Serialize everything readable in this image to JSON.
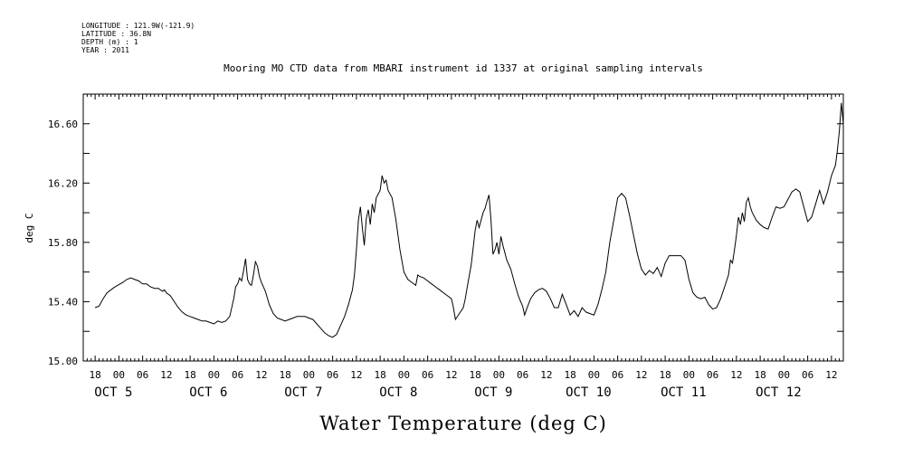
{
  "meta_lines": [
    "LONGITUDE : 121.9W(-121.9)",
    "LATITUDE : 36.8N",
    "DEPTH (m) : 1",
    "YEAR : 2011"
  ],
  "chart_data": {
    "type": "line",
    "title": "Mooring MO CTD data from MBARI instrument id 1337 at original sampling intervals",
    "xlabel": "Water Temperature (deg C)",
    "ylabel": "deg C",
    "ylim": [
      15.0,
      16.8
    ],
    "yticks": [
      "15.00",
      "15.40",
      "15.80",
      "16.20",
      "16.60"
    ],
    "x_unit": "hours since 2011-10-04 18:00",
    "xlim": [
      -3,
      189
    ],
    "hour_ticks": [
      "18",
      "00",
      "06",
      "12",
      "18",
      "00",
      "06",
      "12",
      "18",
      "00",
      "06",
      "12",
      "18",
      "00",
      "06",
      "12",
      "18",
      "00",
      "06",
      "12",
      "18",
      "00",
      "06",
      "12",
      "18",
      "00",
      "06",
      "12",
      "18",
      "00",
      "06",
      "12"
    ],
    "day_labels": [
      "OCT  5",
      "OCT  6",
      "OCT  7",
      "OCT  8",
      "OCT  9",
      "OCT 10",
      "OCT 11",
      "OCT 12"
    ],
    "series": [
      {
        "values": [
          [
            0,
            15.36
          ],
          [
            1,
            15.37
          ],
          [
            2,
            15.42
          ],
          [
            3,
            15.46
          ],
          [
            5,
            15.5
          ],
          [
            7,
            15.53
          ],
          [
            8,
            15.55
          ],
          [
            9,
            15.56
          ],
          [
            10,
            15.55
          ],
          [
            11,
            15.54
          ],
          [
            12,
            15.52
          ],
          [
            13,
            15.52
          ],
          [
            14,
            15.5
          ],
          [
            15,
            15.49
          ],
          [
            16,
            15.49
          ],
          [
            17,
            15.47
          ],
          [
            17.5,
            15.48
          ],
          [
            18,
            15.46
          ],
          [
            19,
            15.44
          ],
          [
            20,
            15.4
          ],
          [
            21,
            15.36
          ],
          [
            22,
            15.33
          ],
          [
            23,
            15.31
          ],
          [
            24,
            15.3
          ],
          [
            25,
            15.29
          ],
          [
            26,
            15.28
          ],
          [
            27,
            15.27
          ],
          [
            28,
            15.27
          ],
          [
            29,
            15.26
          ],
          [
            30,
            15.25
          ],
          [
            31,
            15.27
          ],
          [
            32,
            15.26
          ],
          [
            33,
            15.27
          ],
          [
            34,
            15.3
          ],
          [
            35,
            15.42
          ],
          [
            35.5,
            15.5
          ],
          [
            36,
            15.52
          ],
          [
            36.5,
            15.56
          ],
          [
            37,
            15.54
          ],
          [
            37.5,
            15.61
          ],
          [
            38,
            15.69
          ],
          [
            38.5,
            15.55
          ],
          [
            39,
            15.52
          ],
          [
            39.5,
            15.51
          ],
          [
            40,
            15.58
          ],
          [
            40.5,
            15.67
          ],
          [
            41,
            15.64
          ],
          [
            41.5,
            15.57
          ],
          [
            42,
            15.53
          ],
          [
            43,
            15.47
          ],
          [
            44,
            15.38
          ],
          [
            45,
            15.32
          ],
          [
            46,
            15.29
          ],
          [
            47,
            15.28
          ],
          [
            48,
            15.27
          ],
          [
            49,
            15.28
          ],
          [
            50,
            15.29
          ],
          [
            51,
            15.3
          ],
          [
            52,
            15.3
          ],
          [
            53,
            15.3
          ],
          [
            54,
            15.29
          ],
          [
            55,
            15.28
          ],
          [
            56,
            15.25
          ],
          [
            57,
            15.22
          ],
          [
            58,
            15.19
          ],
          [
            59,
            15.17
          ],
          [
            60,
            15.16
          ],
          [
            61,
            15.18
          ],
          [
            62,
            15.24
          ],
          [
            63,
            15.3
          ],
          [
            64,
            15.38
          ],
          [
            65,
            15.48
          ],
          [
            65.5,
            15.58
          ],
          [
            66,
            15.75
          ],
          [
            66.5,
            15.95
          ],
          [
            67,
            16.04
          ],
          [
            67.5,
            15.9
          ],
          [
            68,
            15.78
          ],
          [
            68.5,
            15.96
          ],
          [
            69,
            16.02
          ],
          [
            69.5,
            15.92
          ],
          [
            70,
            16.06
          ],
          [
            70.5,
            16.0
          ],
          [
            71,
            16.1
          ],
          [
            72,
            16.15
          ],
          [
            72.5,
            16.25
          ],
          [
            73,
            16.2
          ],
          [
            73.5,
            16.22
          ],
          [
            74,
            16.15
          ],
          [
            75,
            16.1
          ],
          [
            76,
            15.95
          ],
          [
            77,
            15.75
          ],
          [
            78,
            15.6
          ],
          [
            79,
            15.55
          ],
          [
            80,
            15.53
          ],
          [
            81,
            15.51
          ],
          [
            81.5,
            15.58
          ],
          [
            82,
            15.57
          ],
          [
            83,
            15.56
          ],
          [
            84,
            15.54
          ],
          [
            85,
            15.52
          ],
          [
            86,
            15.5
          ],
          [
            87,
            15.48
          ],
          [
            88,
            15.46
          ],
          [
            89,
            15.44
          ],
          [
            90,
            15.42
          ],
          [
            90.5,
            15.36
          ],
          [
            91,
            15.28
          ],
          [
            92,
            15.32
          ],
          [
            93,
            15.36
          ],
          [
            93.5,
            15.42
          ],
          [
            94,
            15.5
          ],
          [
            95,
            15.65
          ],
          [
            96,
            15.88
          ],
          [
            96.5,
            15.95
          ],
          [
            97,
            15.9
          ],
          [
            98,
            16.0
          ],
          [
            98.5,
            16.03
          ],
          [
            99,
            16.08
          ],
          [
            99.5,
            16.12
          ],
          [
            100,
            15.95
          ],
          [
            100.5,
            15.72
          ],
          [
            101,
            15.75
          ],
          [
            101.5,
            15.8
          ],
          [
            102,
            15.72
          ],
          [
            102.5,
            15.84
          ],
          [
            103,
            15.78
          ],
          [
            104,
            15.68
          ],
          [
            105,
            15.62
          ],
          [
            106,
            15.52
          ],
          [
            107,
            15.43
          ],
          [
            108,
            15.37
          ],
          [
            108.5,
            15.31
          ],
          [
            109,
            15.35
          ],
          [
            110,
            15.42
          ],
          [
            111,
            15.46
          ],
          [
            112,
            15.48
          ],
          [
            113,
            15.49
          ],
          [
            114,
            15.47
          ],
          [
            115,
            15.42
          ],
          [
            116,
            15.36
          ],
          [
            117,
            15.36
          ],
          [
            118,
            15.45
          ],
          [
            119,
            15.38
          ],
          [
            120,
            15.31
          ],
          [
            121,
            15.34
          ],
          [
            122,
            15.3
          ],
          [
            123,
            15.36
          ],
          [
            124,
            15.33
          ],
          [
            125,
            15.32
          ],
          [
            126,
            15.31
          ],
          [
            127,
            15.38
          ],
          [
            128,
            15.48
          ],
          [
            129,
            15.6
          ],
          [
            130,
            15.8
          ],
          [
            131,
            15.95
          ],
          [
            132,
            16.1
          ],
          [
            133,
            16.13
          ],
          [
            134,
            16.1
          ],
          [
            135,
            15.98
          ],
          [
            136,
            15.85
          ],
          [
            137,
            15.72
          ],
          [
            138,
            15.62
          ],
          [
            139,
            15.58
          ],
          [
            140,
            15.61
          ],
          [
            141,
            15.59
          ],
          [
            142,
            15.63
          ],
          [
            143,
            15.57
          ],
          [
            144,
            15.66
          ],
          [
            145,
            15.71
          ],
          [
            146,
            15.71
          ],
          [
            147,
            15.71
          ],
          [
            148,
            15.71
          ],
          [
            149,
            15.68
          ],
          [
            150,
            15.55
          ],
          [
            151,
            15.46
          ],
          [
            152,
            15.43
          ],
          [
            153,
            15.42
          ],
          [
            154,
            15.43
          ],
          [
            155,
            15.38
          ],
          [
            156,
            15.35
          ],
          [
            157,
            15.36
          ],
          [
            158,
            15.42
          ],
          [
            159,
            15.5
          ],
          [
            160,
            15.58
          ],
          [
            160.5,
            15.68
          ],
          [
            161,
            15.66
          ],
          [
            161.5,
            15.75
          ],
          [
            162,
            15.85
          ],
          [
            162.5,
            15.97
          ],
          [
            163,
            15.92
          ],
          [
            163.5,
            16.0
          ],
          [
            164,
            15.94
          ],
          [
            164.5,
            16.07
          ],
          [
            165,
            16.1
          ],
          [
            165.5,
            16.04
          ],
          [
            166,
            16.0
          ],
          [
            167,
            15.95
          ],
          [
            168,
            15.92
          ],
          [
            169,
            15.9
          ],
          [
            170,
            15.89
          ],
          [
            171,
            15.97
          ],
          [
            172,
            16.04
          ],
          [
            173,
            16.03
          ],
          [
            174,
            16.04
          ],
          [
            175,
            16.09
          ],
          [
            176,
            16.14
          ],
          [
            177,
            16.16
          ],
          [
            178,
            16.14
          ],
          [
            179,
            16.04
          ],
          [
            180,
            15.94
          ],
          [
            181,
            15.97
          ],
          [
            182,
            16.06
          ],
          [
            183,
            16.15
          ],
          [
            184,
            16.06
          ],
          [
            185,
            16.14
          ],
          [
            186,
            16.25
          ],
          [
            187,
            16.32
          ],
          [
            187.5,
            16.42
          ],
          [
            188,
            16.55
          ],
          [
            188.5,
            16.74
          ],
          [
            189,
            16.6
          ]
        ]
      }
    ],
    "visible_x_max": 189,
    "grid": false
  }
}
